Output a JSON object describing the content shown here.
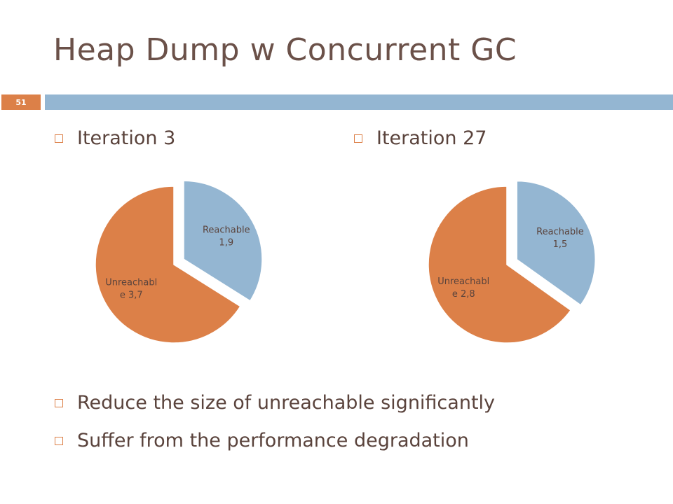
{
  "slide": {
    "title": "Heap Dump w Concurrent GC",
    "number": "51",
    "accent_color": "#dc8048",
    "bar_color": "#94b6d2",
    "title_color": "#6b5149"
  },
  "bullets_top": [
    {
      "text": "Iteration 3"
    },
    {
      "text": "Iteration 27"
    }
  ],
  "bullets_bottom": [
    {
      "text": "Reduce the size of unreachable significantly"
    },
    {
      "text": "Suffer from the performance degradation"
    }
  ],
  "chart_data": [
    {
      "type": "pie",
      "title": "",
      "slices": [
        {
          "label": [
            "Reachable",
            "1,9"
          ],
          "value": 1.9,
          "color": "#94b6d2",
          "exploded": true
        },
        {
          "label": [
            "Unreachabl",
            "e 3,7"
          ],
          "value": 3.7,
          "color": "#dc8048",
          "exploded": false
        }
      ]
    },
    {
      "type": "pie",
      "title": "",
      "slices": [
        {
          "label": [
            "Reachable",
            "1,5"
          ],
          "value": 1.5,
          "color": "#94b6d2",
          "exploded": true
        },
        {
          "label": [
            "Unreachabl",
            "e 2,8"
          ],
          "value": 2.8,
          "color": "#dc8048",
          "exploded": false
        }
      ]
    }
  ]
}
